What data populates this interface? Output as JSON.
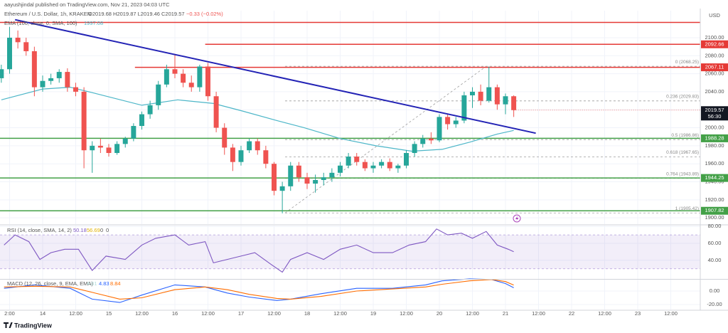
{
  "header": {
    "author_line": "aayushjindal published on TradingView.com, Nov 21, 2023 04:03 UTC",
    "symbol": "Ethereum / U.S. Dollar, 1h, KRAKEN",
    "ohlc": "O2019.68 H2019.87 L2019.46 C2019.57",
    "change": "−0.33 (−0.02%)",
    "ema_label": "EMA (100, close, 0, SMA, 100)",
    "ema_value": "1997.08",
    "rsi_label": "RSI (14, close, SMA, 14, 2)",
    "rsi_values": [
      "50.18",
      "56.69",
      "0",
      "0"
    ],
    "macd_label": "MACD (12, 26, close, 9, EMA, EMA)",
    "macd_values": [
      "4.01",
      "4.83",
      "8.84"
    ]
  },
  "footer": {
    "brand": "TradingView"
  },
  "chart_data": [
    {
      "type": "candlestick",
      "x": [
        -15,
        -12,
        -9,
        -6,
        -3,
        0,
        3,
        6,
        9,
        12,
        15,
        18,
        21,
        24,
        27,
        30,
        33,
        36,
        39,
        42,
        45,
        48,
        51,
        54,
        57,
        60,
        63,
        66,
        69,
        72,
        75,
        78,
        81,
        84,
        87,
        90,
        93,
        96,
        99,
        102,
        105,
        108,
        111,
        114,
        117,
        120,
        123,
        126,
        129,
        132,
        135,
        138,
        141,
        144,
        147,
        150,
        153,
        156,
        159,
        162,
        165,
        168,
        171
      ],
      "open": [
        2055,
        2065,
        2100,
        2095,
        2085,
        2045,
        2052,
        2055,
        2062,
        2045,
        2040,
        1975,
        1980,
        1978,
        1972,
        1982,
        1988,
        2002,
        2015,
        2025,
        2048,
        2065,
        2060,
        2050,
        2045,
        2068,
        2035,
        2000,
        1978,
        1962,
        1975,
        1985,
        1975,
        1960,
        1930,
        1935,
        1958,
        1945,
        1938,
        1942,
        1945,
        1950,
        1958,
        1968,
        1962,
        1955,
        1958,
        1962,
        1955,
        1958,
        1972,
        1982,
        1988,
        1986,
        2012,
        2004,
        2008,
        2036,
        2040,
        2030,
        2045,
        2026,
        2035
      ],
      "high": [
        2070,
        2112,
        2108,
        2100,
        2090,
        2058,
        2060,
        2065,
        2066,
        2050,
        2045,
        1985,
        1988,
        1982,
        1985,
        1990,
        2005,
        2018,
        2030,
        2052,
        2070,
        2082,
        2065,
        2058,
        2070,
        2072,
        2040,
        2005,
        1982,
        1980,
        1988,
        1988,
        1980,
        1962,
        1940,
        1962,
        1962,
        1950,
        1948,
        1950,
        1955,
        1962,
        1972,
        1972,
        1965,
        1962,
        1965,
        1966,
        1960,
        1975,
        1985,
        1992,
        1995,
        2015,
        2015,
        2012,
        2040,
        2045,
        2048,
        2068,
        2048,
        2038,
        2036
      ],
      "low": [
        2050,
        2060,
        2088,
        2080,
        2035,
        2040,
        2048,
        2050,
        2040,
        2035,
        1955,
        1950,
        1972,
        1968,
        1970,
        1978,
        1985,
        1998,
        2010,
        2020,
        2045,
        2055,
        2045,
        2040,
        2040,
        2030,
        1995,
        1970,
        1952,
        1958,
        1972,
        1970,
        1955,
        1925,
        1905,
        1930,
        1940,
        1932,
        1928,
        1936,
        1940,
        1946,
        1955,
        1958,
        1952,
        1950,
        1955,
        1952,
        1950,
        1955,
        1968,
        1978,
        1982,
        1984,
        1998,
        2000,
        2005,
        2022,
        2025,
        2028,
        2020,
        2015,
        2012
      ],
      "close": [
        2065,
        2100,
        2095,
        2085,
        2045,
        2052,
        2055,
        2062,
        2045,
        2040,
        1975,
        1980,
        1978,
        1972,
        1982,
        1988,
        2002,
        2015,
        2025,
        2048,
        2065,
        2060,
        2050,
        2045,
        2068,
        2035,
        2000,
        1978,
        1962,
        1975,
        1985,
        1975,
        1960,
        1930,
        1935,
        1958,
        1945,
        1938,
        1942,
        1945,
        1950,
        1958,
        1968,
        1962,
        1955,
        1958,
        1962,
        1955,
        1958,
        1972,
        1982,
        1988,
        1986,
        2012,
        2004,
        2008,
        2036,
        2040,
        2030,
        2045,
        2026,
        2035,
        2019.57
      ],
      "up_color": "#26a69a",
      "down_color": "#ef5350",
      "xlim": [
        -15.48,
        238.71
      ],
      "xticks": [
        {
          "value": -12,
          "label": "2:00"
        },
        {
          "value": 0,
          "label": "14"
        },
        {
          "value": 12,
          "label": "12:00"
        },
        {
          "value": 24,
          "label": "15"
        },
        {
          "value": 36,
          "label": "12:00"
        },
        {
          "value": 48,
          "label": "16"
        },
        {
          "value": 60,
          "label": "12:00"
        },
        {
          "value": 72,
          "label": "17"
        },
        {
          "value": 84,
          "label": "12:00"
        },
        {
          "value": 96,
          "label": "18"
        },
        {
          "value": 108,
          "label": "12:00"
        },
        {
          "value": 120,
          "label": "19"
        },
        {
          "value": 132,
          "label": "12:00"
        },
        {
          "value": 144,
          "label": "20"
        },
        {
          "value": 156,
          "label": "12:00"
        },
        {
          "value": 168,
          "label": "21"
        },
        {
          "value": 180,
          "label": "12:00"
        },
        {
          "value": 192,
          "label": "22"
        },
        {
          "value": 204,
          "label": "12:00"
        },
        {
          "value": 216,
          "label": "23"
        },
        {
          "value": 228,
          "label": "12:00"
        }
      ],
      "ylim": [
        1893,
        2130
      ],
      "yticks": [
        {
          "value": 1900,
          "label": "1900.00"
        },
        {
          "value": 1920,
          "label": "1920.00"
        },
        {
          "value": 1940,
          "label": "1940.00"
        },
        {
          "value": 1960,
          "label": "1960.00"
        },
        {
          "value": 1980,
          "label": "1980.00"
        },
        {
          "value": 2000,
          "label": "2000.00"
        },
        {
          "value": 2020,
          "label": "2020.00"
        },
        {
          "value": 2040,
          "label": "2040.00"
        },
        {
          "value": 2060,
          "label": "2060.00"
        },
        {
          "value": 2080,
          "label": "2080.00"
        },
        {
          "value": 2100,
          "label": "2100.00"
        }
      ],
      "y_unit": "USD",
      "grid": true,
      "ema": {
        "color": "#4db6c8",
        "x": [
          -15,
          0,
          10,
          18,
          36,
          49,
          62,
          72,
          85,
          95,
          108,
          121,
          134,
          145,
          155,
          165,
          171
        ],
        "values": [
          2031,
          2043,
          2045,
          2039,
          2025,
          2031,
          2027,
          2019,
          2008,
          2000,
          1988,
          1980,
          1974,
          1976,
          1984,
          1993,
          1997.08
        ]
      },
      "trendline": {
        "color": "#2323b5",
        "x": [
          -10,
          179
        ],
        "values": [
          2120,
          1994
        ]
      },
      "resistance_top": {
        "color": "#e53935",
        "value": 2117
      },
      "resistance": {
        "color": "#e53935",
        "levels": [
          {
            "value": 2092.66,
            "from": 59
          },
          {
            "value": 2067.11,
            "from": 33.5
          }
        ]
      },
      "support": {
        "color": "#43a047",
        "levels": [
          1988.28,
          1944.25,
          1907.82
        ]
      },
      "fib": {
        "color": "#9e9e9e",
        "x": [
          88,
          161
        ],
        "values": [
          1905.42,
          2068.25
        ],
        "levels": [
          {
            "value": 2068.25,
            "label": "0 (2068.25)"
          },
          {
            "value": 2029.83,
            "label": "0.236 (2029.83)"
          },
          {
            "value": 1986.86,
            "label": "0.5 (1986.86)"
          },
          {
            "value": 1967.65,
            "label": "0.618 (1967.65)"
          },
          {
            "value": 1943.89,
            "label": "0.764 (1943.89)"
          },
          {
            "value": 1905.42,
            "label": "1 (1905.42)"
          }
        ]
      },
      "countdown": "56:30"
    },
    {
      "type": "line",
      "xlim": [
        -15.48,
        238.71
      ],
      "x": [
        -14,
        -10,
        -5,
        -1,
        3,
        8,
        13,
        18,
        23,
        30,
        36,
        41,
        48,
        53,
        59,
        62,
        67,
        72,
        77,
        83,
        87,
        90,
        96,
        102,
        108,
        114,
        120,
        127,
        133,
        139,
        143,
        147,
        152,
        156,
        161,
        165,
        169,
        171
      ],
      "series": [
        {
          "color": "#7e57c2",
          "values": [
            58,
            70,
            62,
            41,
            49,
            53,
            53,
            28,
            45,
            41,
            58,
            66,
            70,
            58,
            62,
            37,
            41,
            45,
            49,
            35,
            26,
            41,
            49,
            41,
            53,
            58,
            49,
            49,
            58,
            62,
            77,
            70,
            72,
            66,
            74,
            58,
            53,
            50.18
          ]
        }
      ],
      "band": [
        30,
        70
      ],
      "ylim": [
        18,
        81
      ],
      "yticks": [
        {
          "value": 80,
          "label": "80.00"
        },
        {
          "value": 60,
          "label": "60.00"
        },
        {
          "value": 40,
          "label": "40.00"
        }
      ]
    },
    {
      "type": "line",
      "xlim": [
        -15.48,
        238.71
      ],
      "x": [
        -14,
        -3,
        10,
        18,
        28,
        36,
        48,
        59,
        67,
        75,
        85,
        90,
        101,
        114,
        127,
        139,
        145,
        155,
        163,
        168,
        171
      ],
      "series": [
        {
          "color": "#2962ff",
          "values": [
            4,
            9,
            4,
            -12,
            -17,
            -6,
            9,
            6,
            -3,
            -9,
            -14,
            -12,
            -4,
            4,
            4,
            9,
            15,
            18,
            17,
            11,
            4.83
          ]
        },
        {
          "color": "#ff6d00",
          "values": [
            6,
            7,
            6,
            -2,
            -12,
            -10,
            2,
            6,
            2,
            -5,
            -11,
            -12,
            -8,
            0,
            3,
            6,
            10,
            15,
            17,
            14,
            8.84
          ]
        }
      ],
      "ylim": [
        -27.4,
        16.8
      ],
      "yticks": [
        {
          "value": 0,
          "label": "0.00"
        },
        {
          "value": -20,
          "label": "-20.00"
        }
      ]
    }
  ]
}
